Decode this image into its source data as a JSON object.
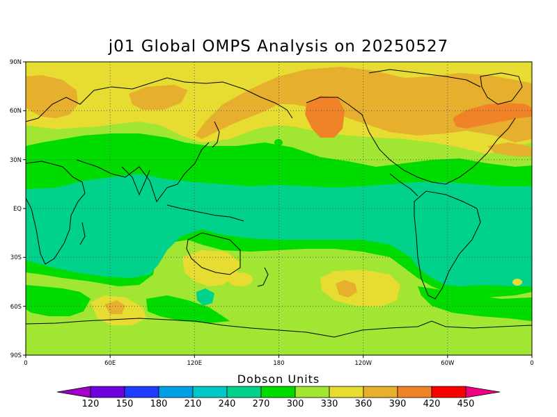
{
  "title": "j01 Global OMPS Analysis on 20250527",
  "map": {
    "projection": "equirectangular",
    "lat_range": [
      -90,
      90
    ],
    "lon_range": [
      0,
      360
    ],
    "grid": true,
    "lat_ticks": [
      {
        "value": 90,
        "label": "90N"
      },
      {
        "value": 60,
        "label": "60N"
      },
      {
        "value": 30,
        "label": "30N"
      },
      {
        "value": 0,
        "label": "EQ"
      },
      {
        "value": -30,
        "label": "30S"
      },
      {
        "value": -60,
        "label": "60S"
      },
      {
        "value": -90,
        "label": "90S"
      }
    ],
    "lon_ticks": [
      {
        "value": 0,
        "label": "0"
      },
      {
        "value": 60,
        "label": "60E"
      },
      {
        "value": 120,
        "label": "120E"
      },
      {
        "value": 180,
        "label": "180"
      },
      {
        "value": 240,
        "label": "120W"
      },
      {
        "value": 300,
        "label": "60W"
      },
      {
        "value": 360,
        "label": "0"
      }
    ]
  },
  "colorbar": {
    "title": "Dobson Units",
    "levels": [
      120,
      150,
      180,
      210,
      240,
      270,
      300,
      330,
      360,
      390,
      420,
      450
    ],
    "colors": [
      "#a000c8",
      "#6e00dc",
      "#1e3cff",
      "#00a0e6",
      "#00c8c8",
      "#00d28c",
      "#00dc00",
      "#a0e632",
      "#e6dc32",
      "#e6af2d",
      "#f08228",
      "#fa0000",
      "#f00082"
    ]
  },
  "ozone_bands": {
    "band_330_360_north": "#e6dc32",
    "band_360_390": "#e6af2d",
    "band_390_420": "#f08228",
    "band_300_330": "#a0e632",
    "band_270_300": "#00dc00",
    "band_240_270": "#00d28c"
  }
}
